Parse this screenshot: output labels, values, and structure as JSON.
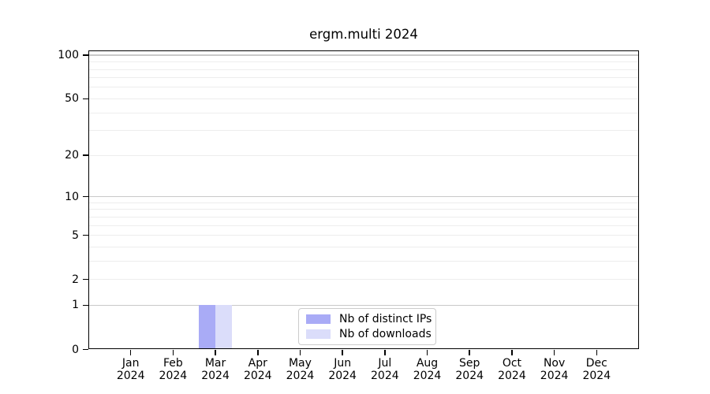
{
  "figure": {
    "background": "#ffffff"
  },
  "chart_data": {
    "type": "bar",
    "title": "ergm.multi 2024",
    "months": [
      "Jan",
      "Feb",
      "Mar",
      "Apr",
      "May",
      "Jun",
      "Jul",
      "Aug",
      "Sep",
      "Oct",
      "Nov",
      "Dec"
    ],
    "year": "2024",
    "series": [
      {
        "name": "Nb of distinct IPs",
        "color": "#a9abf6",
        "values": [
          0,
          0,
          1,
          0,
          0,
          0,
          0,
          0,
          0,
          0,
          0,
          0
        ]
      },
      {
        "name": "Nb of downloads",
        "color": "#dbddfa",
        "values": [
          0,
          0,
          1,
          0,
          0,
          0,
          0,
          0,
          0,
          0,
          0,
          0
        ]
      }
    ],
    "y_scale": "log1p",
    "ylim": [
      0,
      108
    ],
    "y_tick_values": [
      0,
      1,
      2,
      5,
      10,
      20,
      50,
      100
    ],
    "gridlines": {
      "major_values": [
        1,
        10,
        100
      ],
      "minor_values": [
        2,
        3,
        4,
        5,
        6,
        7,
        8,
        9,
        20,
        30,
        40,
        50,
        60,
        70,
        80,
        90
      ],
      "major_color": "#c9c9c9",
      "minor_color": "#ededed"
    },
    "legend": {
      "position": "lower center inside",
      "entries": [
        "Nb of distinct IPs",
        "Nb of downloads"
      ]
    },
    "axis_color": "#000000"
  }
}
